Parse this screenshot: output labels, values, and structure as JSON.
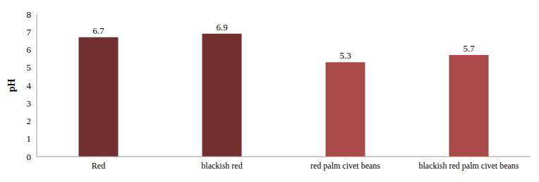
{
  "chart_data": {
    "type": "bar",
    "categories": [
      "Red",
      "blackish red",
      "red palm civet beans",
      "blackish red palm civet beans"
    ],
    "values": [
      6.7,
      6.9,
      5.3,
      5.7
    ],
    "colors": [
      "#722f2f",
      "#722f2f",
      "#a84a45",
      "#a84a45"
    ],
    "y_label": "pH",
    "ylim": [
      0,
      8
    ],
    "yticks": [
      0,
      1,
      2,
      3,
      4,
      5,
      6,
      7,
      8
    ],
    "grid": false,
    "data_labels": true
  }
}
